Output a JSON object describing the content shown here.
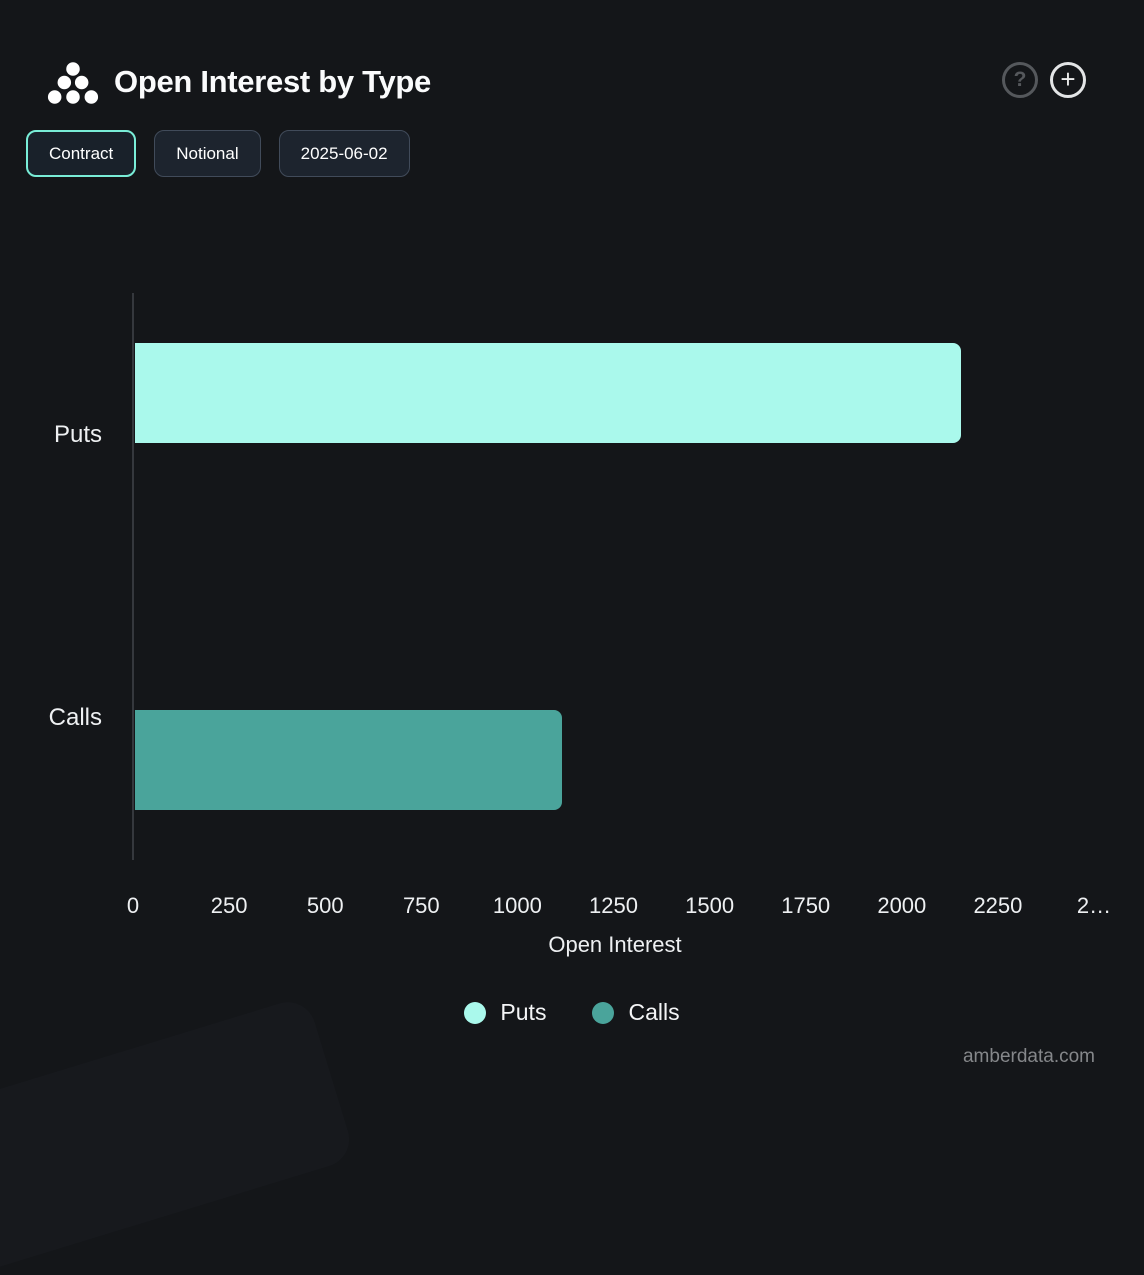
{
  "header": {
    "title": "Open Interest by Type",
    "help_glyph": "?",
    "add_glyph": "+"
  },
  "toolbar": {
    "buttons": [
      {
        "label": "Contract",
        "active": true
      },
      {
        "label": "Notional",
        "active": false
      },
      {
        "label": "2025-06-02",
        "active": false
      }
    ]
  },
  "chart_data": {
    "type": "bar",
    "orientation": "horizontal",
    "title": "Open Interest by Type",
    "categories": [
      "Puts",
      "Calls"
    ],
    "series": [
      {
        "name": "Puts",
        "color": "#aaf9ec",
        "values": [
          2150,
          0
        ]
      },
      {
        "name": "Calls",
        "color": "#4aa49b",
        "values": [
          0,
          1110
        ]
      }
    ],
    "xlabel": "Open Interest",
    "xlim": [
      0,
      2630
    ],
    "x_ticks": [
      {
        "value": 0,
        "label": "0"
      },
      {
        "value": 250,
        "label": "250"
      },
      {
        "value": 500,
        "label": "500"
      },
      {
        "value": 750,
        "label": "750"
      },
      {
        "value": 1000,
        "label": "1000"
      },
      {
        "value": 1250,
        "label": "1250"
      },
      {
        "value": 1500,
        "label": "1500"
      },
      {
        "value": 1750,
        "label": "1750"
      },
      {
        "value": 2000,
        "label": "2000"
      },
      {
        "value": 2250,
        "label": "2250"
      },
      {
        "value": 2500,
        "label": "2…"
      }
    ],
    "legend": [
      {
        "label": "Puts",
        "color": "#aaf9ec"
      },
      {
        "label": "Calls",
        "color": "#4aa49b"
      }
    ],
    "legend_position": "bottom",
    "grid": false
  },
  "footer": {
    "watermark": "amberdata.com"
  },
  "colors": {
    "background": "#141619",
    "puts": "#aaf9ec",
    "calls": "#4aa49b",
    "active_button_border": "#79edd7",
    "axis_line": "#35383d"
  }
}
